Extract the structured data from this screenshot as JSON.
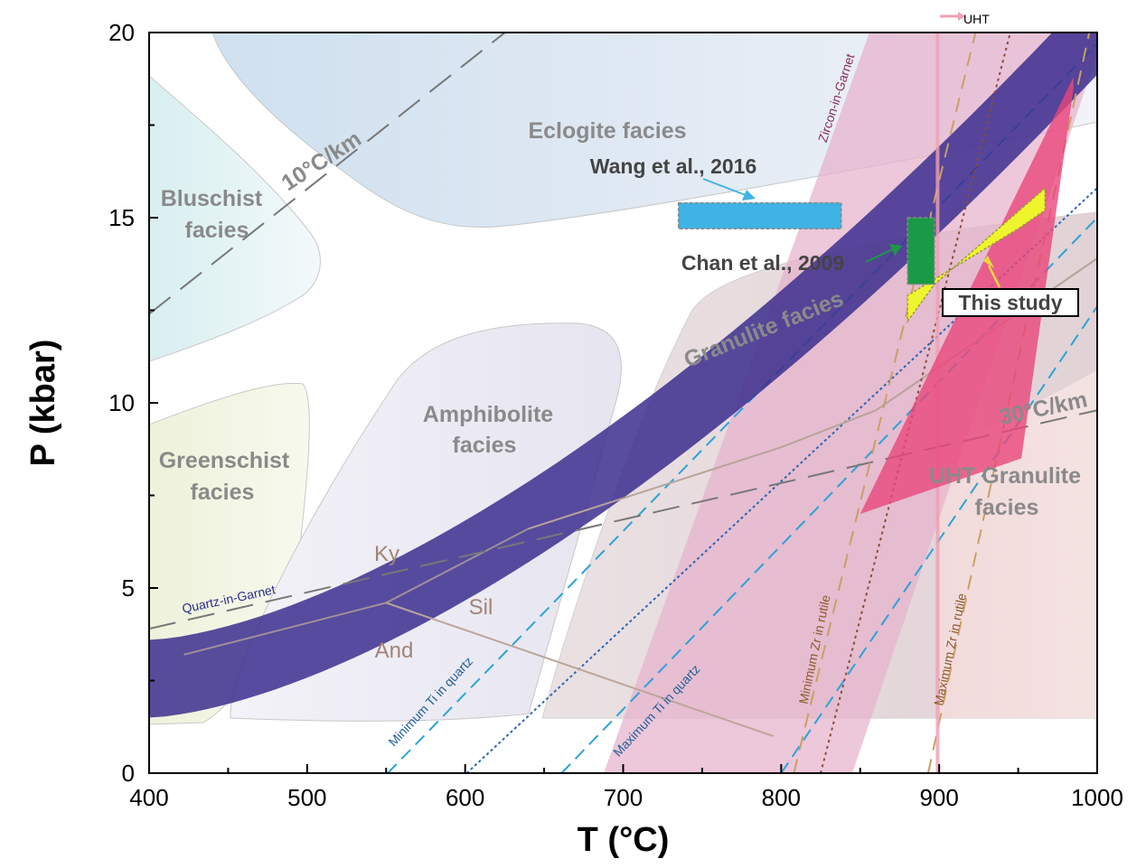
{
  "chart_data": {
    "type": "scatter",
    "xlabel": "T (°C)",
    "ylabel": "P (kbar)",
    "xlim": [
      400,
      1000
    ],
    "ylim": [
      0,
      20
    ],
    "xticks": [
      "400",
      "500",
      "600",
      "700",
      "800",
      "900",
      "1000"
    ],
    "yticks": [
      "0",
      "5",
      "10",
      "15",
      "20"
    ],
    "facies_labels": {
      "eclogite": "Eclogite facies",
      "blueschist_1": "Bluschist",
      "blueschist_2": "facies",
      "greenschist_1": "Greenschist",
      "greenschist_2": "facies",
      "amphibolite_1": "Amphibolite",
      "amphibolite_2": "facies",
      "granulite": "Granulite facies",
      "uht_granulite_1": "UHT Granulite",
      "uht_granulite_2": "facies"
    },
    "minerals": {
      "ky": "Ky",
      "sil": "Sil",
      "and": "And"
    },
    "geotherms": [
      {
        "label": "10°C/km",
        "gradient": 10
      },
      {
        "label": "30°C/km",
        "gradient": 30
      }
    ],
    "line_labels": {
      "quartz_in_garnet": "Quartz-in-Garnet",
      "zircon_in_garnet": "Zircon-in-Garnet",
      "min_ti": "Minimum Ti in quartz",
      "max_ti": "Maximum Ti in quartz",
      "min_zr": "Minimum Zr in rutile",
      "max_zr": "Maximum Zr in rutile",
      "uht": "UHT"
    },
    "reference_boxes": [
      {
        "label": "Wang et al., 2016",
        "tmin": 735,
        "tmax": 838,
        "pmin": 14.7,
        "pmax": 15.4,
        "color": "#3fb2e6"
      },
      {
        "label": "Chan et al., 2009",
        "tmin": 880,
        "tmax": 897,
        "pmin": 13.2,
        "pmax": 15.0,
        "color": "#1a9a46"
      }
    ],
    "this_study": {
      "label": "This study",
      "polygon_T": [
        880,
        897,
        967,
        967,
        950,
        880
      ],
      "polygon_P": [
        12.2,
        13.2,
        15.8,
        15.2,
        14.7,
        12.9
      ],
      "color": "#eef52c"
    },
    "pink_field": {
      "polygon_T": [
        850,
        985,
        985,
        952,
        850
      ],
      "polygon_P": [
        7.0,
        18.8,
        18.5,
        8.5,
        7.0
      ],
      "color": "#e8467a"
    },
    "colors": {
      "quartz_in_garnet_band": "#3b2e8e",
      "zircon_band": "#e6b2cc",
      "ti_line": "#2aa3d8",
      "zr_line": "#c8a064"
    }
  }
}
